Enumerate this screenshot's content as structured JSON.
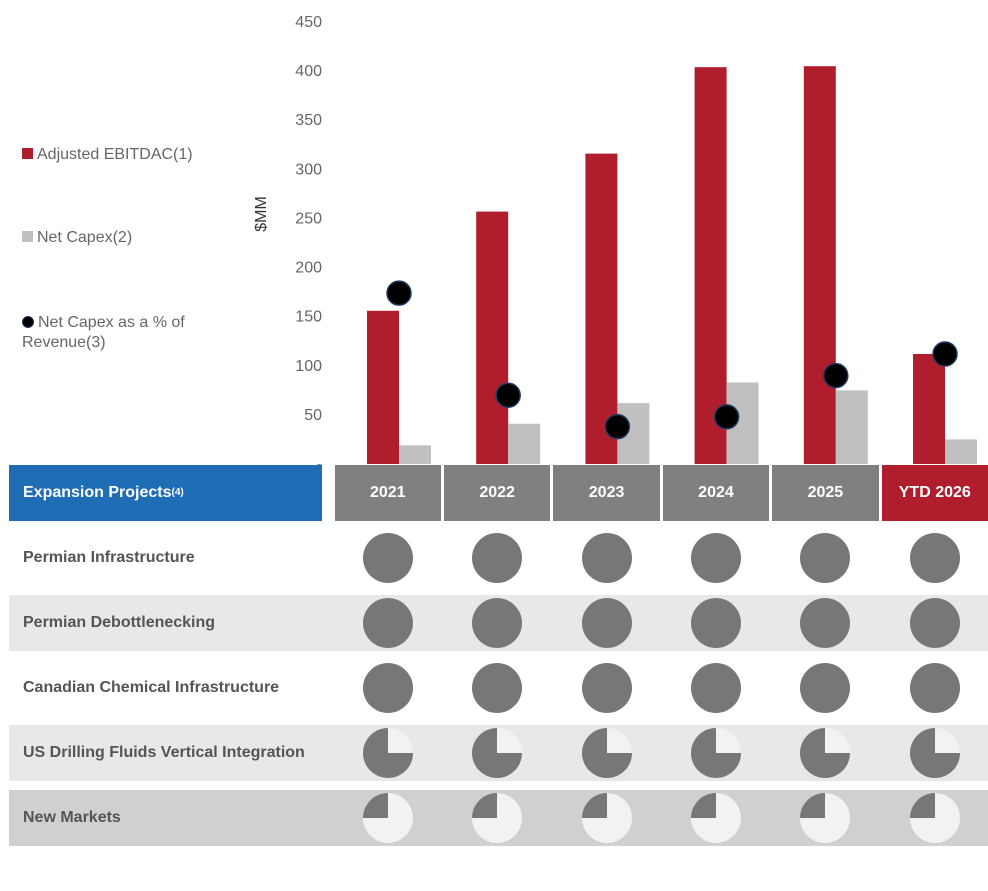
{
  "chart_data": {
    "type": "bar",
    "categories": [
      "2021",
      "2022",
      "2023",
      "2024",
      "2025",
      "YTD 2026"
    ],
    "series": [
      {
        "name": "Adjusted EBITDAC(1)",
        "kind": "bar",
        "color": "#b01e2e",
        "values": [
          156,
          257,
          316,
          404,
          405,
          112
        ]
      },
      {
        "name": "Net Capex(2)",
        "kind": "bar",
        "color": "#c0c0c0",
        "values": [
          19,
          41,
          62,
          83,
          75,
          25
        ]
      },
      {
        "name": "Net Capex as a % of Revenue(3)",
        "kind": "dot",
        "color": "#000000",
        "values": [
          174,
          70,
          38,
          48,
          90,
          112
        ]
      }
    ],
    "ylabel": "$MM",
    "ylim": [
      0,
      450
    ],
    "yticks": [
      "-",
      "50",
      "100",
      "150",
      "200",
      "250",
      "300",
      "350",
      "400",
      "450"
    ],
    "grid": false,
    "legend_position": "left"
  },
  "matrix": {
    "header_label": "Expansion Projects",
    "header_sup": "(4)",
    "years": [
      "2021",
      "2022",
      "2023",
      "2024",
      "2025",
      "YTD 2026"
    ],
    "rows": [
      {
        "label": "Permian Infrastructure",
        "fill": [
          1,
          1,
          1,
          1,
          1,
          1
        ]
      },
      {
        "label": "Permian Debottlenecking",
        "fill": [
          1,
          1,
          1,
          1,
          1,
          1
        ]
      },
      {
        "label": "Canadian Chemical Infrastructure",
        "fill": [
          1,
          1,
          1,
          1,
          1,
          1
        ]
      },
      {
        "label": "US Drilling Fluids Vertical Integration",
        "fill": [
          0.75,
          0.75,
          0.75,
          0.75,
          0.75,
          0.75
        ]
      },
      {
        "label": "New Markets",
        "fill": [
          0.25,
          0.25,
          0.25,
          0.25,
          0.25,
          0.25
        ]
      }
    ]
  },
  "colors": {
    "pie_fill": "#777777",
    "pie_empty": "#f2f2f2"
  }
}
